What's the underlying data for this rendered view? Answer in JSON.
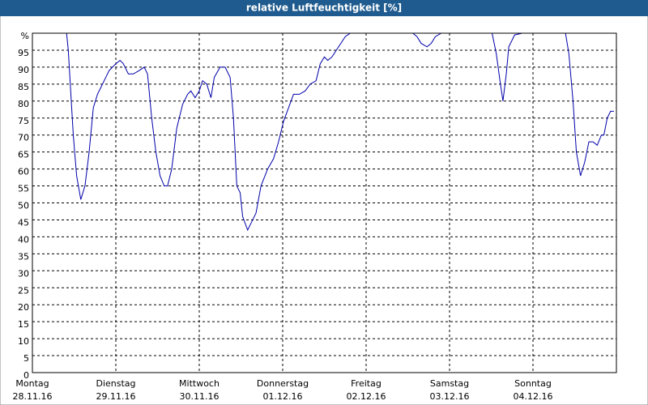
{
  "chart_data": {
    "type": "line",
    "title": "relative Luftfeuchtigkeit [%]",
    "x": [
      0,
      0.41,
      0.43,
      0.49,
      0.53,
      0.58,
      0.63,
      0.68,
      0.73,
      0.78,
      0.84,
      0.92,
      1.0,
      1.05,
      1.09,
      1.15,
      1.21,
      1.28,
      1.34,
      1.38,
      1.43,
      1.48,
      1.53,
      1.58,
      1.62,
      1.67,
      1.73,
      1.8,
      1.86,
      1.9,
      1.95,
      2.0,
      2.04,
      2.09,
      2.14,
      2.18,
      2.25,
      2.31,
      2.37,
      2.41,
      2.45,
      2.49,
      2.52,
      2.58,
      2.64,
      2.68,
      2.74,
      2.82,
      2.89,
      2.95,
      3.01,
      3.07,
      3.13,
      3.2,
      3.27,
      3.33,
      3.4,
      3.45,
      3.5,
      3.54,
      3.59,
      3.67,
      3.75,
      3.81,
      4.22,
      4.56,
      4.61,
      4.66,
      4.73,
      4.78,
      4.83,
      4.9,
      5.51,
      5.56,
      5.61,
      5.64,
      5.68,
      5.71,
      5.78,
      5.87,
      6.39,
      6.43,
      6.48,
      6.52,
      6.57,
      6.62,
      6.67,
      6.72,
      6.77,
      6.82,
      6.85,
      6.89,
      6.93,
      6.97
    ],
    "series": [
      {
        "color": "#0000aa",
        "values": [
          100,
          100,
          95,
          70,
          58,
          51,
          55,
          65,
          78,
          82,
          85,
          89,
          91,
          92,
          91,
          88,
          88,
          89,
          90,
          88,
          75,
          65,
          58,
          55,
          55,
          60,
          72,
          79,
          82,
          83,
          81,
          83,
          86,
          85,
          81,
          87,
          90,
          90,
          87,
          75,
          55,
          53,
          46,
          42,
          45,
          47,
          55,
          60,
          63,
          68,
          74,
          78,
          82,
          82,
          83,
          85,
          86,
          91,
          93,
          92,
          93,
          96,
          99,
          100,
          100,
          100,
          99,
          97,
          96,
          97,
          99,
          100,
          100,
          94,
          85,
          80,
          88,
          96,
          99.5,
          100,
          100,
          94,
          80,
          65,
          58,
          62,
          68,
          68,
          67,
          70,
          70,
          75,
          77,
          77
        ]
      }
    ],
    "xlim": [
      0,
      7
    ],
    "xticks": [
      {
        "value": 0,
        "label": "Montag"
      },
      {
        "value": 1,
        "label": "Dienstag"
      },
      {
        "value": 2,
        "label": "Mittwoch"
      },
      {
        "value": 3,
        "label": "Donnerstag"
      },
      {
        "value": 4,
        "label": "Freitag"
      },
      {
        "value": 5,
        "label": "Samstag"
      },
      {
        "value": 6,
        "label": "Sonntag"
      }
    ],
    "xtick_dates": [
      "28.11.16",
      "29.11.16",
      "30.11.16",
      "01.12.16",
      "02.12.16",
      "03.12.16",
      "04.12.16"
    ],
    "ylim": [
      0,
      100
    ],
    "yticks": [
      0,
      5,
      10,
      15,
      20,
      25,
      30,
      35,
      40,
      45,
      50,
      55,
      60,
      65,
      70,
      75,
      80,
      85,
      90,
      95,
      {
        "value": 100,
        "label": "%"
      }
    ],
    "grid": true
  }
}
